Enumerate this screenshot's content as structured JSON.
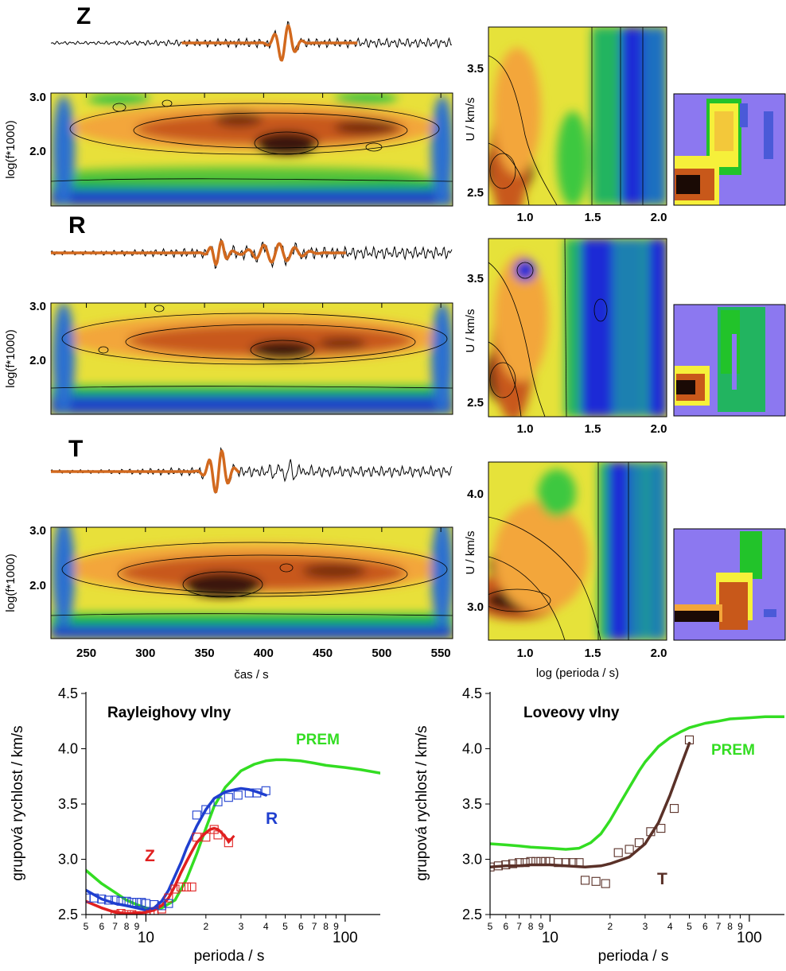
{
  "colors": {
    "trace": "#000000",
    "filtered": "#d2691e",
    "rayleigh_z": "#e02020",
    "rayleigh_r": "#1f3fcf",
    "love_t": "#5a3128",
    "prem": "#33dd22",
    "map_dark": "#1a0a05",
    "map_brown": "#c8581a",
    "map_orange": "#f3a63a",
    "map_yellow": "#f6f03a",
    "map_green": "#22c32a",
    "map_blue": "#1b2bd6",
    "map_violet": "#8c78f0"
  },
  "panels": [
    {
      "component": "Z",
      "ylabel": "log(f*1000)",
      "yticks": [
        "3.0",
        "2.0"
      ],
      "vel_ylabel": "U / km/s",
      "vel_yticks": [
        "3.5",
        "2.5"
      ],
      "vel_xticks": [
        "1.0",
        "1.5",
        "2.0"
      ]
    },
    {
      "component": "R",
      "ylabel": "log(f*1000)",
      "yticks": [
        "3.0",
        "2.0"
      ],
      "vel_ylabel": "U / km/s",
      "vel_yticks": [
        "3.5",
        "2.5"
      ],
      "vel_xticks": [
        "1.0",
        "1.5",
        "2.0"
      ]
    },
    {
      "component": "T",
      "ylabel": "log(f*1000)",
      "yticks": [
        "3.0",
        "2.0"
      ],
      "vel_ylabel": "U / km/s",
      "vel_yticks": [
        "4.0",
        "3.0"
      ],
      "vel_xticks": [
        "1.0",
        "1.5",
        "2.0"
      ]
    }
  ],
  "time_axis": {
    "label": "čas / s",
    "ticks": [
      "250",
      "300",
      "350",
      "400",
      "450",
      "500",
      "550"
    ],
    "range": [
      220,
      560
    ]
  },
  "period_axis": {
    "label": "log (perioda / s)"
  },
  "chart_data": [
    {
      "type": "scatter",
      "title": "Rayleighovy vlny",
      "xlabel": "perioda / s",
      "ylabel": "grupová rychlost / km/s",
      "xscale": "log",
      "xlim": [
        5,
        150
      ],
      "ylim": [
        2.5,
        4.5
      ],
      "xticks_major": [
        "10",
        "100"
      ],
      "xticks_minor": [
        "5",
        "6",
        "7",
        "8",
        "9",
        "2",
        "3",
        "4",
        "5",
        "6",
        "7",
        "8",
        "9"
      ],
      "yticks": [
        "4.5",
        "4.0",
        "3.5",
        "3.0",
        "2.5"
      ],
      "series": [
        {
          "name": "PREM",
          "kind": "line",
          "color": "#33dd22",
          "x": [
            5,
            6,
            7,
            8,
            9,
            10,
            11,
            12,
            14,
            16,
            18,
            20,
            22,
            25,
            30,
            35,
            40,
            45,
            50,
            60,
            70,
            80,
            100,
            120,
            150
          ],
          "y": [
            2.9,
            2.78,
            2.7,
            2.63,
            2.59,
            2.56,
            2.55,
            2.56,
            2.63,
            2.82,
            3.05,
            3.28,
            3.48,
            3.65,
            3.8,
            3.86,
            3.89,
            3.9,
            3.9,
            3.89,
            3.87,
            3.85,
            3.83,
            3.81,
            3.78
          ]
        },
        {
          "name": "Z",
          "kind": "line",
          "color": "#e02020",
          "x": [
            5,
            6,
            7,
            8,
            9,
            10,
            11,
            12,
            13,
            14,
            15,
            16,
            17,
            18,
            19,
            20,
            21,
            22,
            23,
            24,
            25,
            26
          ],
          "y": [
            2.62,
            2.56,
            2.52,
            2.51,
            2.51,
            2.52,
            2.54,
            2.58,
            2.65,
            2.76,
            2.88,
            2.98,
            3.07,
            3.15,
            3.2,
            3.24,
            3.27,
            3.28,
            3.27,
            3.24,
            3.2,
            3.17
          ]
        },
        {
          "name": "Z",
          "kind": "markers",
          "color": "#e02020",
          "x": [
            7,
            7.5,
            8,
            8.5,
            9,
            9.5,
            10,
            10.5,
            11,
            12,
            13,
            14,
            15,
            16,
            17,
            18,
            20,
            22,
            23,
            26
          ],
          "y": [
            2.5,
            2.51,
            2.5,
            2.5,
            2.49,
            2.48,
            2.49,
            2.5,
            2.52,
            2.55,
            2.65,
            2.73,
            2.75,
            2.75,
            2.75,
            3.2,
            3.2,
            3.27,
            3.22,
            3.15
          ]
        },
        {
          "name": "R",
          "kind": "line",
          "color": "#1f3fcf",
          "x": [
            5,
            6,
            7,
            8,
            9,
            10,
            11,
            12,
            13,
            14,
            15,
            16,
            18,
            20,
            22,
            25,
            28,
            30,
            33,
            36,
            40
          ],
          "y": [
            2.72,
            2.64,
            2.6,
            2.58,
            2.56,
            2.54,
            2.56,
            2.62,
            2.72,
            2.85,
            2.97,
            3.1,
            3.3,
            3.45,
            3.55,
            3.61,
            3.63,
            3.64,
            3.63,
            3.61,
            3.58
          ]
        },
        {
          "name": "R",
          "kind": "markers",
          "color": "#1f3fcf",
          "x": [
            5,
            5.5,
            6,
            6.5,
            7,
            7.5,
            8,
            8.5,
            9,
            9.5,
            10,
            11,
            12,
            13,
            18,
            20,
            23,
            26,
            29,
            33,
            36,
            40
          ],
          "y": [
            2.65,
            2.65,
            2.64,
            2.63,
            2.63,
            2.62,
            2.62,
            2.61,
            2.61,
            2.61,
            2.6,
            2.59,
            2.58,
            2.6,
            3.4,
            3.45,
            3.52,
            3.56,
            3.58,
            3.6,
            3.6,
            3.62
          ]
        }
      ],
      "annotations": [
        "PREM",
        "Z",
        "R"
      ]
    },
    {
      "type": "scatter",
      "title": "Loveovy vlny",
      "xlabel": "perioda / s",
      "ylabel": "grupová rychlost / km/s",
      "xscale": "log",
      "xlim": [
        5,
        150
      ],
      "ylim": [
        2.5,
        4.5
      ],
      "xticks_major": [
        "10",
        "100"
      ],
      "xticks_minor": [
        "5",
        "6",
        "7",
        "8",
        "9",
        "2",
        "3",
        "4",
        "5",
        "6",
        "7",
        "8",
        "9"
      ],
      "yticks": [
        "4.5",
        "4.0",
        "3.5",
        "3.0",
        "2.5"
      ],
      "series": [
        {
          "name": "PREM",
          "kind": "line",
          "color": "#33dd22",
          "x": [
            5,
            6,
            7,
            8,
            10,
            12,
            14,
            16,
            18,
            20,
            22,
            25,
            28,
            30,
            35,
            40,
            45,
            50,
            60,
            70,
            80,
            100,
            120,
            150
          ],
          "y": [
            3.14,
            3.13,
            3.12,
            3.11,
            3.1,
            3.09,
            3.1,
            3.15,
            3.23,
            3.35,
            3.48,
            3.65,
            3.8,
            3.88,
            4.02,
            4.1,
            4.15,
            4.19,
            4.23,
            4.25,
            4.27,
            4.28,
            4.29,
            4.29
          ]
        },
        {
          "name": "T",
          "kind": "line",
          "color": "#5a3128",
          "x": [
            5,
            6,
            7,
            8,
            10,
            12,
            15,
            18,
            20,
            25,
            30,
            35,
            40,
            45,
            50
          ],
          "y": [
            2.93,
            2.94,
            2.94,
            2.95,
            2.95,
            2.94,
            2.93,
            2.94,
            2.96,
            3.02,
            3.14,
            3.33,
            3.58,
            3.83,
            4.05
          ]
        },
        {
          "name": "T",
          "kind": "markers",
          "color": "#5a3128",
          "x": [
            5,
            5.5,
            6,
            6.5,
            7,
            7.5,
            8,
            8.5,
            9,
            9.5,
            10,
            11,
            12,
            13,
            14,
            15,
            17,
            19,
            22,
            25,
            28,
            32,
            36,
            42,
            50
          ],
          "y": [
            2.93,
            2.94,
            2.95,
            2.96,
            2.97,
            2.97,
            2.98,
            2.98,
            2.98,
            2.98,
            2.98,
            2.97,
            2.97,
            2.97,
            2.97,
            2.81,
            2.8,
            2.78,
            3.06,
            3.09,
            3.15,
            3.25,
            3.28,
            3.46,
            4.08
          ]
        }
      ],
      "annotations": [
        "PREM",
        "T"
      ]
    }
  ]
}
